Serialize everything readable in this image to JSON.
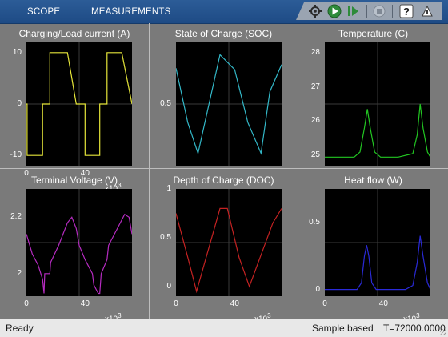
{
  "toolbar": {
    "tabs": [
      "SCOPE",
      "MEASUREMENTS"
    ],
    "icons": [
      "settings-gear-icon",
      "run-icon",
      "step-forward-icon",
      "stop-icon",
      "help-icon",
      "undock-icon"
    ]
  },
  "status": {
    "left": "Ready",
    "mode": "Sample based",
    "time": "T=72000.0000"
  },
  "colors": {
    "background": "#7a7a7a",
    "plot_bg": "#000000",
    "toolbar": "#1e4b85"
  },
  "chart_data": [
    {
      "type": "line",
      "title": "Charging/Load current (A)",
      "yticks": [
        "10",
        "0",
        "-10"
      ],
      "xticks": [
        "0",
        "40"
      ],
      "x_exponent": "x10",
      "x_exponent_power": "3",
      "color": "#e6e63a",
      "xlim": [
        0,
        72
      ],
      "ylim": [
        -12,
        12
      ],
      "x": [
        0,
        0.5,
        0.5,
        11,
        11,
        16,
        16,
        28,
        31,
        34,
        37,
        40,
        40,
        50,
        50,
        55,
        55,
        65,
        72
      ],
      "y": [
        0,
        0,
        -10,
        -10,
        0,
        0,
        10,
        10,
        5,
        0,
        0,
        0,
        -10,
        -10,
        0,
        0,
        10,
        10,
        0
      ]
    },
    {
      "type": "line",
      "title": "State of Charge (SOC)",
      "yticks": [
        "0.5"
      ],
      "xticks": [],
      "color": "#33b8c8",
      "xlim": [
        0,
        72
      ],
      "ylim": [
        0,
        1
      ],
      "x": [
        0,
        8,
        15,
        30,
        40,
        49,
        58,
        64,
        72
      ],
      "y": [
        0.79,
        0.35,
        0.1,
        0.9,
        0.78,
        0.35,
        0.1,
        0.6,
        0.82
      ]
    },
    {
      "type": "line",
      "title": "Temperature (C)",
      "yticks": [
        "28",
        "27",
        "26",
        "25"
      ],
      "xticks": [],
      "color": "#22c622",
      "xlim": [
        0,
        72
      ],
      "ylim": [
        24.7,
        28.3
      ],
      "x": [
        0,
        20,
        24,
        27,
        29,
        31,
        34,
        38,
        50,
        60,
        63,
        65,
        67,
        70,
        72
      ],
      "y": [
        24.95,
        24.95,
        25.1,
        25.8,
        26.35,
        25.8,
        25.1,
        24.95,
        24.95,
        25.05,
        25.6,
        26.5,
        25.8,
        25.1,
        24.95
      ]
    },
    {
      "type": "line",
      "title": "Terminal Voltage (V)",
      "yticks": [
        "2.2",
        "2"
      ],
      "xticks": [
        "0",
        "40"
      ],
      "x_exponent": "x10",
      "x_exponent_power": "3",
      "color": "#b52bc0",
      "xlim": [
        0,
        72
      ],
      "ylim": [
        1.92,
        2.3
      ],
      "x": [
        0,
        4,
        8,
        11,
        12,
        12.5,
        16,
        16.5,
        22,
        28,
        31,
        34,
        36,
        40,
        45,
        46,
        49,
        50,
        51,
        55,
        56,
        62,
        67,
        70,
        72
      ],
      "y": [
        2.14,
        2.07,
        2.03,
        1.98,
        1.93,
        2.0,
        2.0,
        2.04,
        2.1,
        2.18,
        2.2,
        2.16,
        2.1,
        2.05,
        2.0,
        1.96,
        1.93,
        1.93,
        2.0,
        2.05,
        2.1,
        2.16,
        2.21,
        2.2,
        2.14
      ]
    },
    {
      "type": "line",
      "title": "Depth of Charge (DOC)",
      "yticks": [
        "1",
        "0.5",
        "0"
      ],
      "xticks": [
        "0",
        "40"
      ],
      "x_exponent": "x10",
      "x_exponent_power": "3",
      "color": "#c42222",
      "xlim": [
        0,
        72
      ],
      "ylim": [
        -0.1,
        1
      ],
      "x": [
        0,
        8,
        14,
        30,
        35,
        43,
        50,
        66,
        72
      ],
      "y": [
        0.75,
        0.3,
        -0.05,
        0.8,
        0.8,
        0.3,
        0.0,
        0.65,
        0.8
      ]
    },
    {
      "type": "line",
      "title": "Heat flow (W)",
      "yticks": [
        "0.5",
        "0"
      ],
      "xticks": [
        "0",
        "40"
      ],
      "x_exponent": "x10",
      "x_exponent_power": "3",
      "color": "#2a2ad8",
      "xlim": [
        0,
        72
      ],
      "ylim": [
        -0.05,
        0.75
      ],
      "x": [
        0,
        22,
        25,
        27,
        28.5,
        30,
        32,
        35,
        55,
        60,
        63,
        65,
        67,
        70,
        72
      ],
      "y": [
        0,
        0,
        0.05,
        0.25,
        0.33,
        0.25,
        0.05,
        0,
        0,
        0.03,
        0.2,
        0.4,
        0.25,
        0.05,
        0
      ]
    }
  ]
}
